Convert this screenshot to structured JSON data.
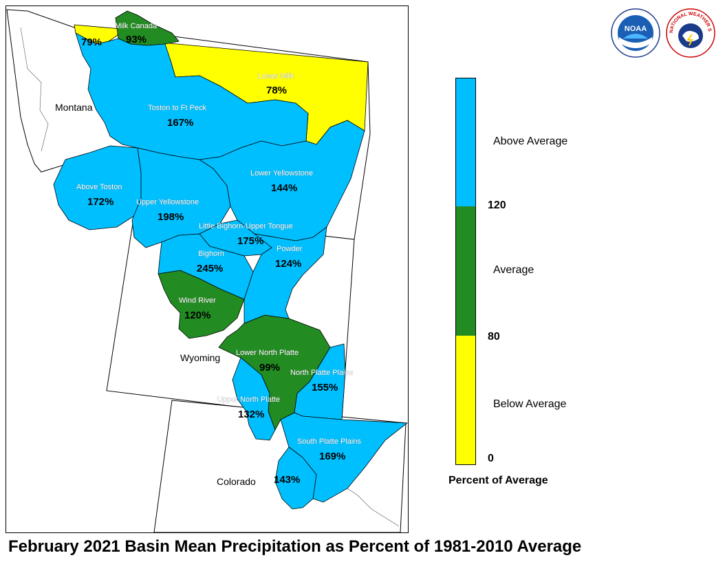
{
  "title": "February 2021 Basin Mean Precipitation as Percent of 1981-2010 Average",
  "logos": {
    "noaa": "NOAA",
    "nws": "NATIONAL WEATHER SERVICE"
  },
  "states": {
    "montana": "Montana",
    "wyoming": "Wyoming",
    "colorado": "Colorado"
  },
  "colors": {
    "above": "#00BFFF",
    "average": "#228B22",
    "below": "#FFFF00"
  },
  "legend": {
    "title": "Percent of Average",
    "categories": {
      "above": "Above Average",
      "average": "Average",
      "below": "Below Average"
    },
    "ticks": {
      "t120": "120",
      "t80": "80",
      "t0": "0"
    }
  },
  "basins": {
    "milk_west": {
      "name": "",
      "pct": "79%"
    },
    "milk_canada": {
      "name": "Milk Canada",
      "pct": "93%"
    },
    "lower_milk": {
      "name": "Lower Milk",
      "pct": "78%"
    },
    "toston_ftpeck": {
      "name": "Toston to Ft Peck",
      "pct": "167%"
    },
    "above_toston": {
      "name": "Above Toston",
      "pct": "172%"
    },
    "upper_yellowstone": {
      "name": "Upper Yellowstone",
      "pct": "198%"
    },
    "lower_yellowstone": {
      "name": "Lower Yellowstone",
      "pct": "144%"
    },
    "little_bighorn": {
      "name": "Little Bighorn-Upper Tongue",
      "pct": "175%"
    },
    "bighorn": {
      "name": "Bighorn",
      "pct": "245%"
    },
    "powder": {
      "name": "Powder",
      "pct": "124%"
    },
    "wind_river": {
      "name": "Wind River",
      "pct": "120%"
    },
    "lower_north_platte": {
      "name": "Lower North Platte",
      "pct": "99%"
    },
    "north_platte_plains": {
      "name": "North Platte Plains",
      "pct": "155%"
    },
    "upper_north_platte": {
      "name": "Upper North Platte",
      "pct": "132%"
    },
    "south_platte_plains": {
      "name": "South Platte Plains",
      "pct": "169%"
    },
    "south_platte_west": {
      "name": "",
      "pct": "143%"
    }
  }
}
